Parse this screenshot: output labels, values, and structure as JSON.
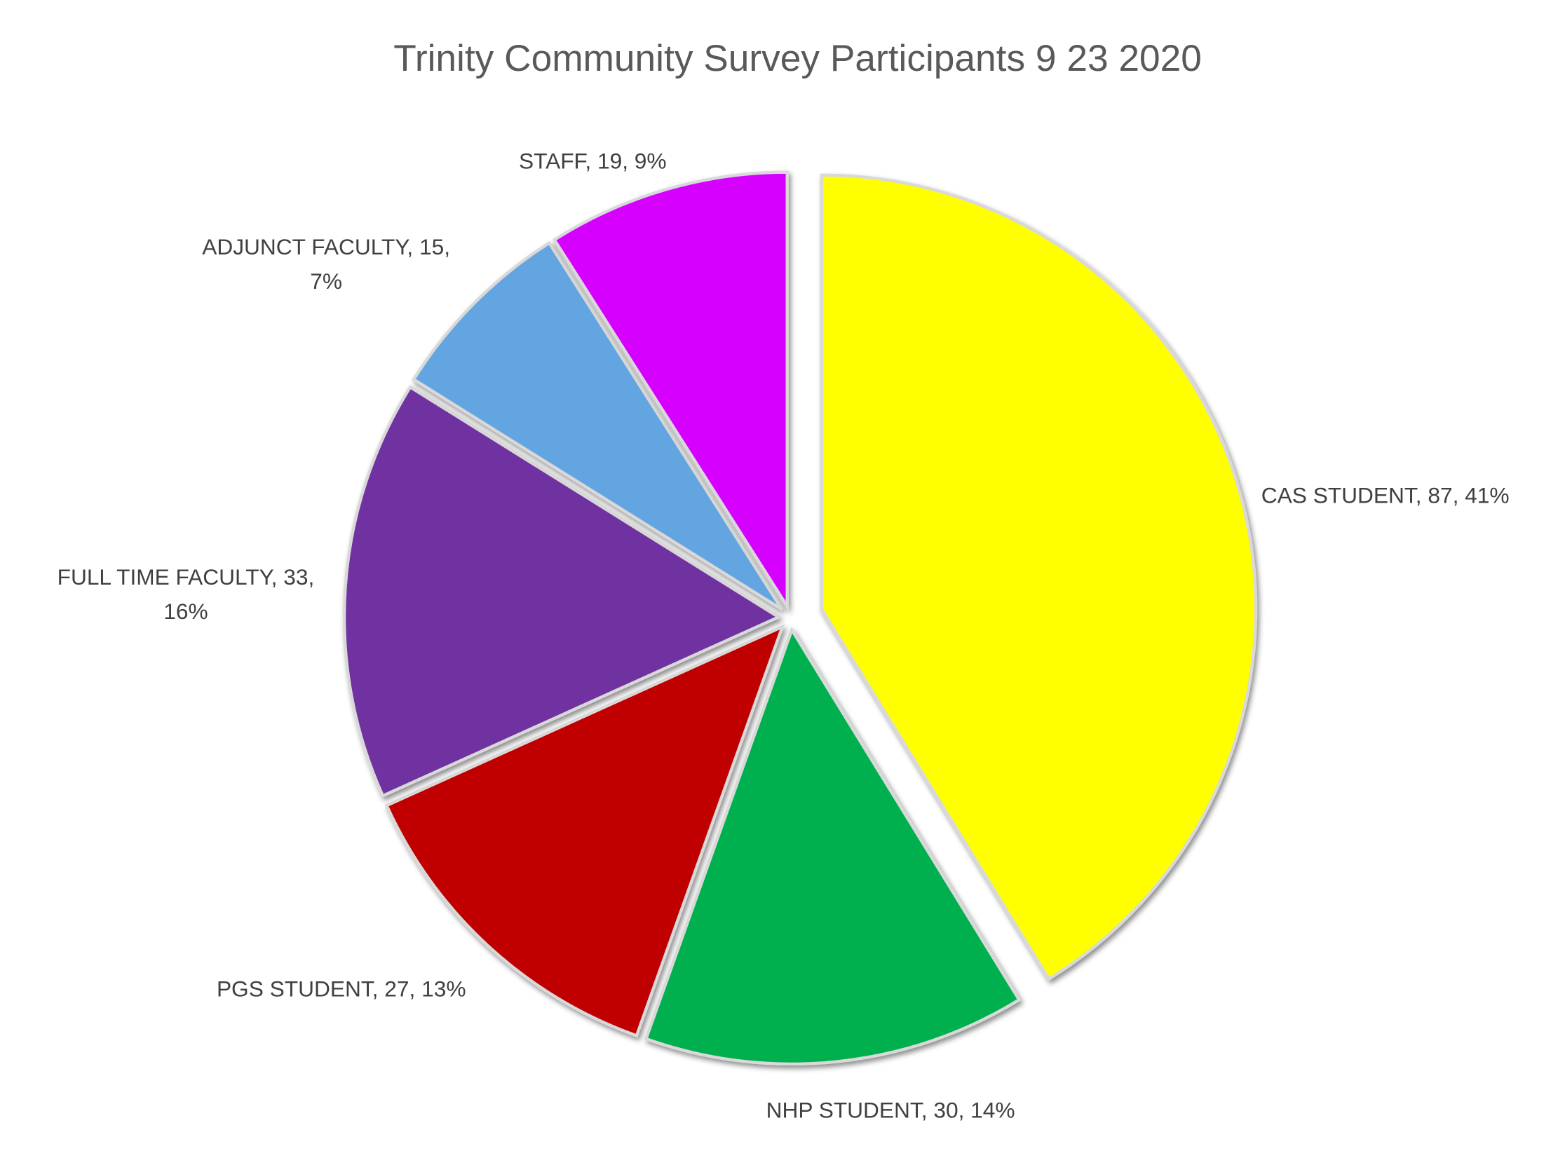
{
  "chart_data": {
    "type": "pie",
    "title": "Trinity Community Survey Participants 9 23 2020",
    "start_angle": "top, clockwise",
    "slices": [
      {
        "label": "CAS STUDENT",
        "value": 87,
        "percent": "41%",
        "color": "#FFFF00",
        "exploded": true
      },
      {
        "label": "NHP STUDENT",
        "value": 30,
        "percent": "14%",
        "color": "#00B050",
        "exploded": false
      },
      {
        "label": "PGS STUDENT",
        "value": 27,
        "percent": "13%",
        "color": "#C00000",
        "exploded": false
      },
      {
        "label": "FULL TIME FACULTY",
        "value": 33,
        "percent": "16%",
        "color": "#7030A0",
        "exploded": false
      },
      {
        "label": "ADJUNCT FACULTY",
        "value": 15,
        "percent": "7%",
        "color": "#62A5E0",
        "exploded": false
      },
      {
        "label": "STAFF",
        "value": 19,
        "percent": "9%",
        "color": "#D600FF",
        "exploded": false
      }
    ],
    "data_labels": [
      [
        "CAS STUDENT, 87, 41%"
      ],
      [
        "NHP STUDENT, 30, 14%"
      ],
      [
        "PGS STUDENT, 27, 13%"
      ],
      [
        "FULL TIME FACULTY, 33,",
        "16%"
      ],
      [
        "ADJUNCT FACULTY, 15,",
        "7%"
      ],
      [
        "STAFF, 19, 9%"
      ]
    ],
    "legend": "none"
  }
}
